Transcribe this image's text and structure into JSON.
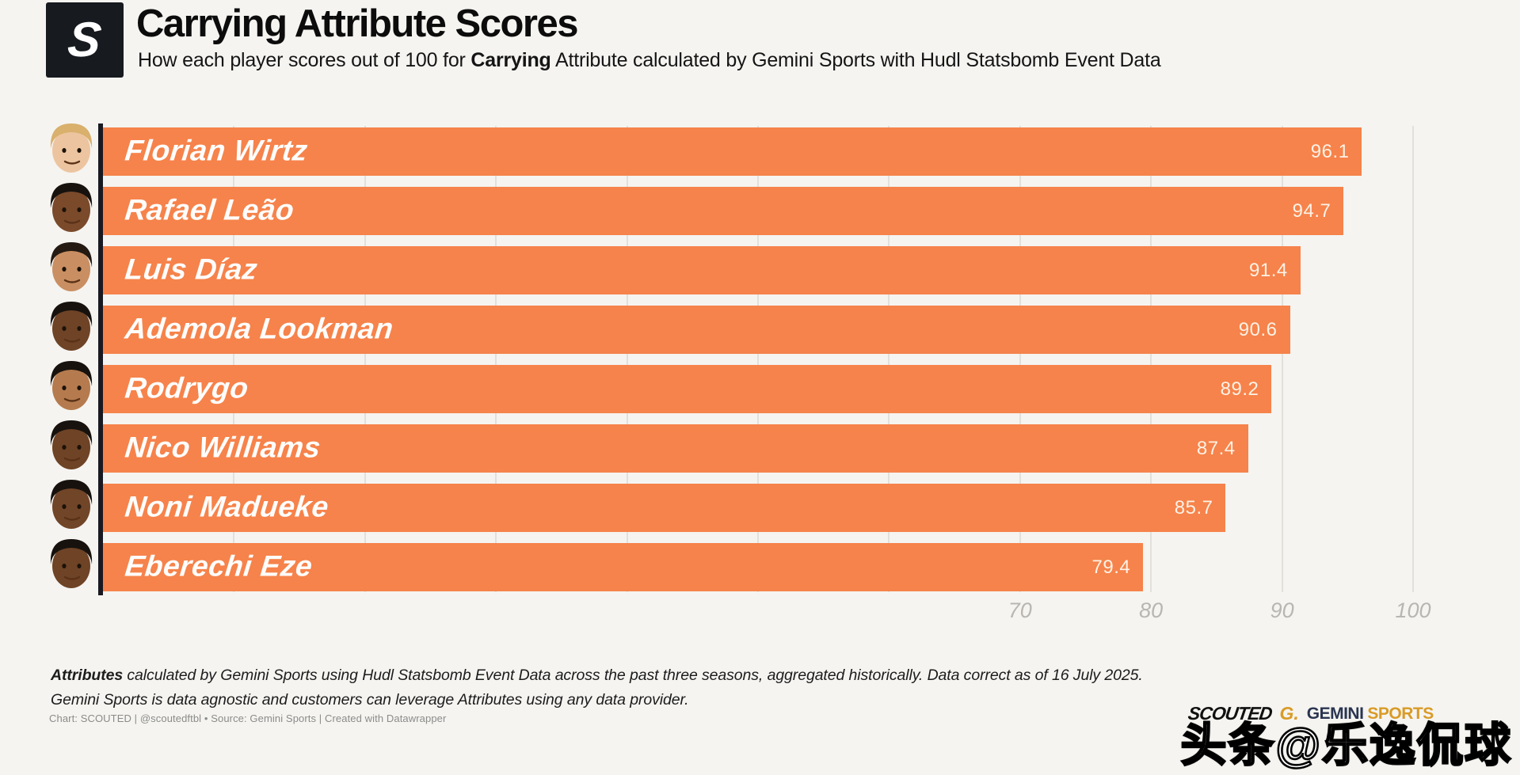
{
  "header": {
    "logo_letter": "S",
    "title": "Carrying Attribute Scores",
    "subtitle_prefix": "How each player scores out of 100 for ",
    "subtitle_bold": "Carrying",
    "subtitle_suffix": " Attribute calculated by Gemini Sports with Hudl Statsbomb Event Data"
  },
  "chart_data": {
    "type": "bar",
    "orientation": "horizontal",
    "title": "Carrying Attribute Scores",
    "categories": [
      "Florian Wirtz",
      "Rafael Leão",
      "Luis Díaz",
      "Ademola Lookman",
      "Rodrygo",
      "Nico Williams",
      "Noni Madueke",
      "Eberechi Eze"
    ],
    "values": [
      96.1,
      94.7,
      91.4,
      90.6,
      89.2,
      87.4,
      85.7,
      79.4
    ],
    "xlabel": "",
    "ylabel": "",
    "xlim": [
      0,
      105
    ],
    "xticks": [
      70,
      80,
      90,
      100
    ],
    "grid": true,
    "bar_color": "#f6834b",
    "value_label_color": "#fdf2e6",
    "players": [
      {
        "name": "Florian Wirtz",
        "value": "96.1",
        "skin": "#ecc5a0",
        "hair": "#d9b06c"
      },
      {
        "name": "Rafael Leão",
        "value": "94.7",
        "skin": "#7a4a2b",
        "hair": "#17120e"
      },
      {
        "name": "Luis Díaz",
        "value": "91.4",
        "skin": "#c98f62",
        "hair": "#241a12"
      },
      {
        "name": "Ademola Lookman",
        "value": "90.6",
        "skin": "#6e4326",
        "hair": "#17120e"
      },
      {
        "name": "Rodrygo",
        "value": "89.2",
        "skin": "#b57b4e",
        "hair": "#17120e"
      },
      {
        "name": "Nico Williams",
        "value": "87.4",
        "skin": "#6e4326",
        "hair": "#17120e"
      },
      {
        "name": "Noni Madueke",
        "value": "85.7",
        "skin": "#714528",
        "hair": "#17120e"
      },
      {
        "name": "Eberechi Eze",
        "value": "79.4",
        "skin": "#6e4326",
        "hair": "#17120e"
      }
    ]
  },
  "axis": {
    "tick_labels": [
      "70",
      "80",
      "90",
      "100"
    ]
  },
  "footnotes": {
    "line1_bold": "Attributes",
    "line1_rest": " calculated by Gemini Sports using Hudl Statsbomb Event Data across the past three seasons, aggregated historically. Data correct as of 16 July 2025.",
    "line2": "Gemini Sports is data agnostic and customers can leverage Attributes using any data provider."
  },
  "credit": "Chart: SCOUTED | @scoutedftbl • Source: Gemini Sports | Created with Datawrapper",
  "branding": {
    "scouted": "SCOUTED",
    "gemini_g": "G.",
    "gemini": "GEMINI",
    "sports": "SPORTS"
  },
  "watermark": "头条@乐逸侃球",
  "colors": {
    "background": "#f5f4f1",
    "bar": "#f6834b",
    "axis_line": "#191922",
    "gridline": "#e2e0db",
    "tick_label": "#b9b6b1",
    "title": "#0c0c0c",
    "logo_box": "#171a1f"
  }
}
